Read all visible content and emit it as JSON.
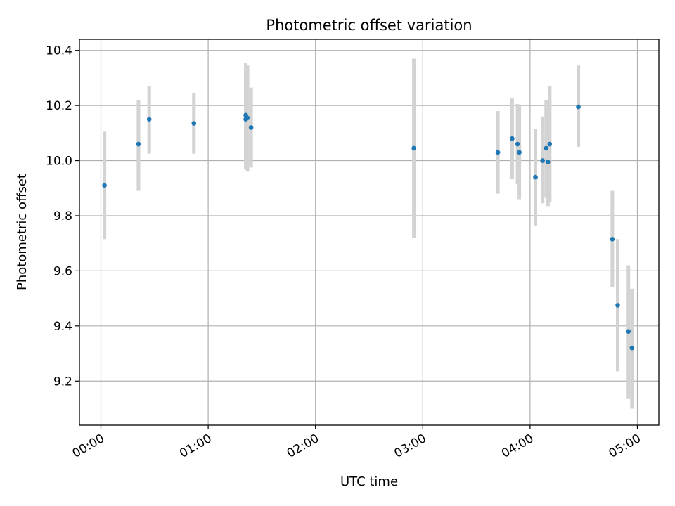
{
  "chart_data": {
    "type": "scatter",
    "title": "Photometric offset variation",
    "xlabel": "UTC time",
    "ylabel": "Photometric offset",
    "x_format": "HH:MM",
    "xlim": [
      "-00:12",
      "05:12"
    ],
    "ylim": [
      9.04,
      10.44
    ],
    "x_ticks": [
      "00:00",
      "01:00",
      "02:00",
      "03:00",
      "04:00",
      "05:00"
    ],
    "y_ticks": [
      9.2,
      9.4,
      9.6,
      9.8,
      10.0,
      10.2,
      10.4
    ],
    "y_tick_labels": [
      "9.2",
      "9.4",
      "9.6",
      "9.8",
      "10.0",
      "10.2",
      "10.4"
    ],
    "grid": true,
    "marker_color": "#1f77b4",
    "errorbar_color": "#d3d3d3",
    "points": [
      {
        "t": "00:02",
        "y": 9.91,
        "ylow": 9.715,
        "yhigh": 10.105
      },
      {
        "t": "00:21",
        "y": 10.06,
        "ylow": 9.89,
        "yhigh": 10.22
      },
      {
        "t": "00:21",
        "y": 10.06,
        "ylow": 9.91,
        "yhigh": 10.21
      },
      {
        "t": "00:27",
        "y": 10.15,
        "ylow": 10.025,
        "yhigh": 10.27
      },
      {
        "t": "00:52",
        "y": 10.135,
        "ylow": 10.025,
        "yhigh": 10.245
      },
      {
        "t": "01:21",
        "y": 10.165,
        "ylow": 9.97,
        "yhigh": 10.355
      },
      {
        "t": "01:21",
        "y": 10.15,
        "ylow": 9.97,
        "yhigh": 10.35
      },
      {
        "t": "01:22",
        "y": 10.155,
        "ylow": 9.96,
        "yhigh": 10.345
      },
      {
        "t": "01:24",
        "y": 10.12,
        "ylow": 9.975,
        "yhigh": 10.265
      },
      {
        "t": "02:55",
        "y": 10.045,
        "ylow": 9.72,
        "yhigh": 10.37
      },
      {
        "t": "03:42",
        "y": 10.03,
        "ylow": 9.88,
        "yhigh": 10.18
      },
      {
        "t": "03:50",
        "y": 10.08,
        "ylow": 9.935,
        "yhigh": 10.225
      },
      {
        "t": "03:53",
        "y": 10.06,
        "ylow": 9.915,
        "yhigh": 10.205
      },
      {
        "t": "03:54",
        "y": 10.03,
        "ylow": 9.86,
        "yhigh": 10.2
      },
      {
        "t": "04:03",
        "y": 9.94,
        "ylow": 9.765,
        "yhigh": 10.115
      },
      {
        "t": "04:07",
        "y": 10.0,
        "ylow": 9.845,
        "yhigh": 10.16
      },
      {
        "t": "04:09",
        "y": 10.045,
        "ylow": 9.865,
        "yhigh": 10.22
      },
      {
        "t": "04:10",
        "y": 9.995,
        "ylow": 9.835,
        "yhigh": 10.155
      },
      {
        "t": "04:11",
        "y": 10.06,
        "ylow": 9.85,
        "yhigh": 10.27
      },
      {
        "t": "04:27",
        "y": 10.195,
        "ylow": 10.05,
        "yhigh": 10.345
      },
      {
        "t": "04:46",
        "y": 9.715,
        "ylow": 9.54,
        "yhigh": 9.89
      },
      {
        "t": "04:49",
        "y": 9.475,
        "ylow": 9.235,
        "yhigh": 9.715
      },
      {
        "t": "04:55",
        "y": 9.38,
        "ylow": 9.135,
        "yhigh": 9.62
      },
      {
        "t": "04:57",
        "y": 9.32,
        "ylow": 9.1,
        "yhigh": 9.535
      }
    ]
  }
}
